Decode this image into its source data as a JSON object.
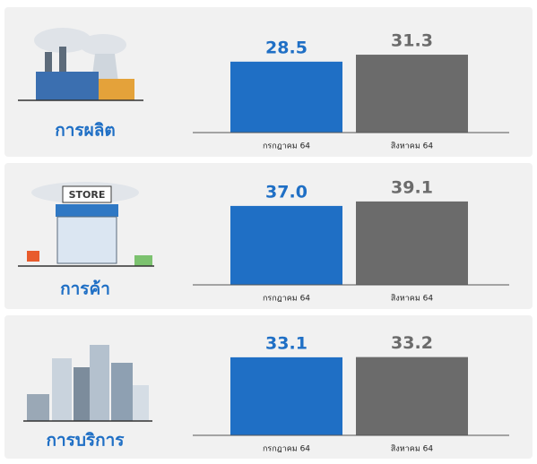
{
  "chart_data": [
    {
      "type": "bar",
      "title": "การผลิต",
      "categories": [
        "กรกฎาคม 64",
        "สิงหาคม 64"
      ],
      "values": [
        28.5,
        31.3
      ],
      "value_labels": [
        "28.5",
        "31.3"
      ],
      "colors": [
        "#1f6fc5",
        "#6b6b6b"
      ],
      "ylim": [
        0,
        36
      ]
    },
    {
      "type": "bar",
      "title": "การค้า",
      "categories": [
        "กรกฎาคม 64",
        "สิงหาคม 64"
      ],
      "values": [
        37.0,
        39.1
      ],
      "value_labels": [
        "37.0",
        "39.1"
      ],
      "colors": [
        "#1f6fc5",
        "#6b6b6b"
      ],
      "ylim": [
        0,
        42
      ]
    },
    {
      "type": "bar",
      "title": "การบริการ",
      "categories": [
        "กรกฎาคม 64",
        "สิงหาคม 64"
      ],
      "values": [
        33.1,
        33.2
      ],
      "value_labels": [
        "33.1",
        "33.2"
      ],
      "colors": [
        "#1f6fc5",
        "#6b6b6b"
      ],
      "ylim": [
        0,
        38
      ]
    }
  ]
}
